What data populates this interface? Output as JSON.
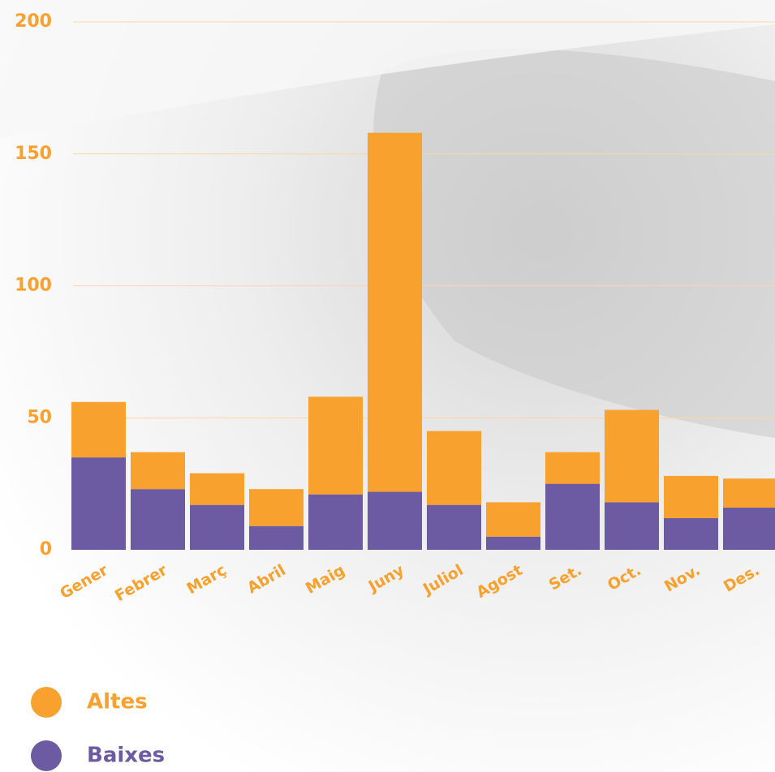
{
  "chart_data": {
    "type": "stacked_bar",
    "categories": [
      "Gener",
      "Febrer",
      "Març",
      "Abril",
      "Maig",
      "Juny",
      "Juliol",
      "Agost",
      "Set.",
      "Oct.",
      "Nov.",
      "Des."
    ],
    "series": [
      {
        "name": "Altes",
        "color": "#f9a12e",
        "values": [
          21,
          14,
          12,
          14,
          37,
          136,
          28,
          13,
          12,
          35,
          16,
          11
        ]
      },
      {
        "name": "Baixes",
        "color": "#6c5aa2",
        "values": [
          35,
          23,
          17,
          9,
          21,
          22,
          17,
          5,
          25,
          18,
          12,
          16
        ]
      }
    ],
    "ylim": [
      0,
      200
    ],
    "yticks": [
      0,
      50,
      100,
      150,
      200
    ],
    "grid": true
  }
}
